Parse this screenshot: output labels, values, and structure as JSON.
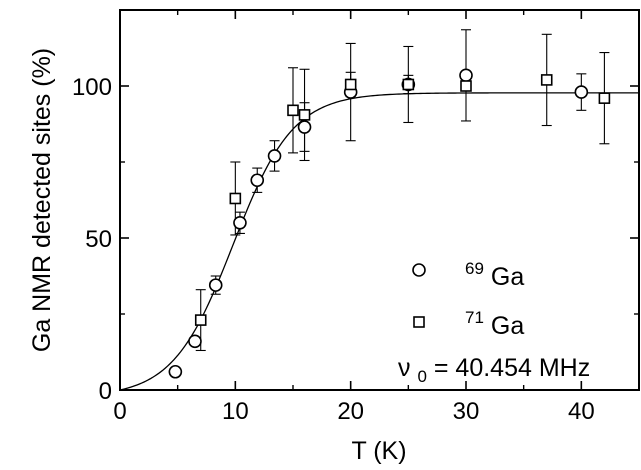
{
  "chart_data": {
    "type": "scatter",
    "xlabel": "T (K)",
    "ylabel": "Ga NMR detected sites (%)",
    "xlim": [
      0,
      45
    ],
    "ylim": [
      0,
      125
    ],
    "xticks": [
      0,
      10,
      20,
      30,
      40
    ],
    "yticks": [
      0,
      50,
      100
    ],
    "grid": false,
    "legend_position": "bottom-right",
    "legend": [
      {
        "marker": "circle",
        "sup": "69",
        "text": "Ga"
      },
      {
        "marker": "square",
        "sup": "71",
        "text": "Ga"
      }
    ],
    "annotation": {
      "symbol": "ν",
      "sub": "0",
      "text": " = 40.454 MHz"
    },
    "series": [
      {
        "marker": "circle",
        "points": [
          {
            "x": 4.8,
            "y": 6,
            "err": 0
          },
          {
            "x": 6.5,
            "y": 16,
            "err": 0
          },
          {
            "x": 8.3,
            "y": 34.5,
            "err": 3
          },
          {
            "x": 10.4,
            "y": 55,
            "err": 3.5
          },
          {
            "x": 11.9,
            "y": 69,
            "err": 4
          },
          {
            "x": 13.4,
            "y": 77,
            "err": 5
          },
          {
            "x": 16,
            "y": 86.5,
            "err": 8
          },
          {
            "x": 20,
            "y": 98,
            "err": 16
          },
          {
            "x": 25,
            "y": 100.5,
            "err": 3
          },
          {
            "x": 30,
            "y": 103.5,
            "err": 15
          },
          {
            "x": 40,
            "y": 98,
            "err": 6
          }
        ]
      },
      {
        "marker": "square",
        "points": [
          {
            "x": 7,
            "y": 23,
            "err": 10
          },
          {
            "x": 10,
            "y": 63,
            "err": 12
          },
          {
            "x": 15,
            "y": 92,
            "err": 14
          },
          {
            "x": 16,
            "y": 90.5,
            "err": 15
          },
          {
            "x": 20,
            "y": 100.5,
            "err": 4
          },
          {
            "x": 25,
            "y": 100.5,
            "err": 12.5
          },
          {
            "x": 30,
            "y": 100,
            "err": 0
          },
          {
            "x": 37,
            "y": 102,
            "err": 15
          },
          {
            "x": 42,
            "y": 96,
            "err": 15
          }
        ]
      }
    ],
    "fit_curve": {
      "type": "sigmoid",
      "tc": 9.8,
      "width": 2.6,
      "max": 100
    }
  }
}
